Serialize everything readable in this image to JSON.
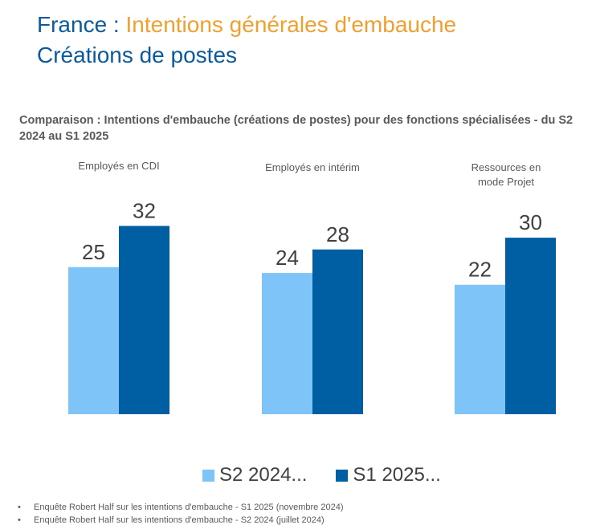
{
  "header": {
    "title_prefix": "France : ",
    "title_accent": "Intentions générales d'embauche",
    "title_line2": "Créations de postes"
  },
  "chart_data": {
    "type": "bar",
    "title": "Comparaison : Intentions d'embauche (créations de postes) pour des fonctions spécialisées - du S2 2024 au S1 2025",
    "categories": [
      "Employés en CDI",
      "Employés en intérim",
      "Ressources en mode Projet"
    ],
    "series": [
      {
        "name": "S2 2024...",
        "values": [
          25,
          24,
          22
        ],
        "color": "#7ec4f8"
      },
      {
        "name": "S1 2025...",
        "values": [
          32,
          28,
          30
        ],
        "color": "#005ea2"
      }
    ],
    "ylim": [
      0,
      35
    ],
    "grid": false,
    "legend": "bottom"
  },
  "notes": [
    "Enquête Robert Half sur les intentions d'embauche - S1 2025 (novembre 2024)",
    "Enquête Robert Half sur les intentions d'embauche - S2 2024 (juillet 2024)"
  ]
}
